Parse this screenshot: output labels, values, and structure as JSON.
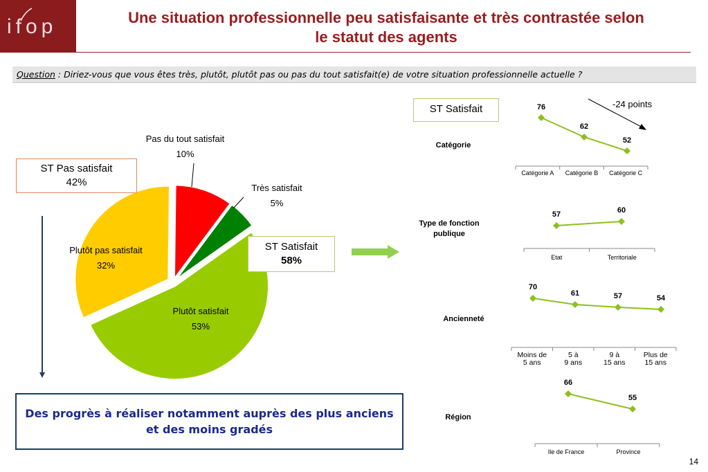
{
  "logo": {
    "text": "ifop"
  },
  "title": {
    "line1": "Une situation professionnelle peu satisfaisante et très contrastée selon",
    "line2": "le statut des agents"
  },
  "question": {
    "label": "Question",
    "text": " : Diriez-vous que vous êtes très, plutôt, plutôt pas ou pas du tout satisfait(e) de votre situation professionnelle actuelle ?"
  },
  "boxes": {
    "st_pas_satisfait": {
      "label": "ST Pas satisfait",
      "value": "42%"
    },
    "st_satisfait": {
      "label": "ST Satisfait",
      "value": "58%"
    },
    "st_satisfait_header": "ST Satisfait"
  },
  "pie_labels": {
    "pas_du_tout": {
      "name": "Pas du tout satisfait",
      "value": "10%"
    },
    "tres": {
      "name": "Très satisfait",
      "value": "5%"
    },
    "plutot_pas": {
      "name": "Plutôt pas satisfait",
      "value": "32%"
    },
    "plutot": {
      "name": "Plutôt satisfait",
      "value": "53%"
    }
  },
  "note": {
    "line1": "Des progrès à réaliser notamment auprès des plus anciens",
    "line2": "et des moins gradés"
  },
  "drop_label": "-24 points",
  "row_labels": {
    "categorie": "Catégorie",
    "fonction_l1": "Type de fonction",
    "fonction_l2": "publique",
    "anciennete": "Ancienneté",
    "region": "Région"
  },
  "page_number": "14",
  "colors": {
    "red": "#ff0000",
    "green_dark": "#008000",
    "yellow": "#ffcc00",
    "lime": "#99cc00",
    "line": "#8dbf1f",
    "arrow": "#92d050",
    "title": "#9b1b1e",
    "logo_bg": "#8b1c1e"
  },
  "chart_data": [
    {
      "type": "pie",
      "categories": [
        "Très satisfait",
        "Plutôt satisfait",
        "Plutôt pas satisfait",
        "Pas du tout satisfait"
      ],
      "values": [
        5,
        53,
        32,
        10
      ],
      "labels": [
        "5%",
        "53%",
        "32%",
        "10%"
      ],
      "colors": [
        "#008000",
        "#99cc00",
        "#ffcc00",
        "#ff0000"
      ]
    },
    {
      "type": "line",
      "title": "Catégorie",
      "categories": [
        "Catégorie A",
        "Catégorie B",
        "Catégorie C"
      ],
      "values": [
        76,
        62,
        52
      ]
    },
    {
      "type": "line",
      "title": "Type de fonction publique",
      "categories": [
        "Etat",
        "Territoriale"
      ],
      "values": [
        57,
        60
      ]
    },
    {
      "type": "line",
      "title": "Ancienneté",
      "categories": [
        "Moins de 5 ans",
        "5 à 9 ans",
        "9 à 15 ans",
        "Plus de 15 ans"
      ],
      "values": [
        70,
        61,
        57,
        54
      ]
    },
    {
      "type": "line",
      "title": "Région",
      "categories": [
        "Ile de France",
        "Province"
      ],
      "values": [
        66,
        55
      ]
    }
  ]
}
